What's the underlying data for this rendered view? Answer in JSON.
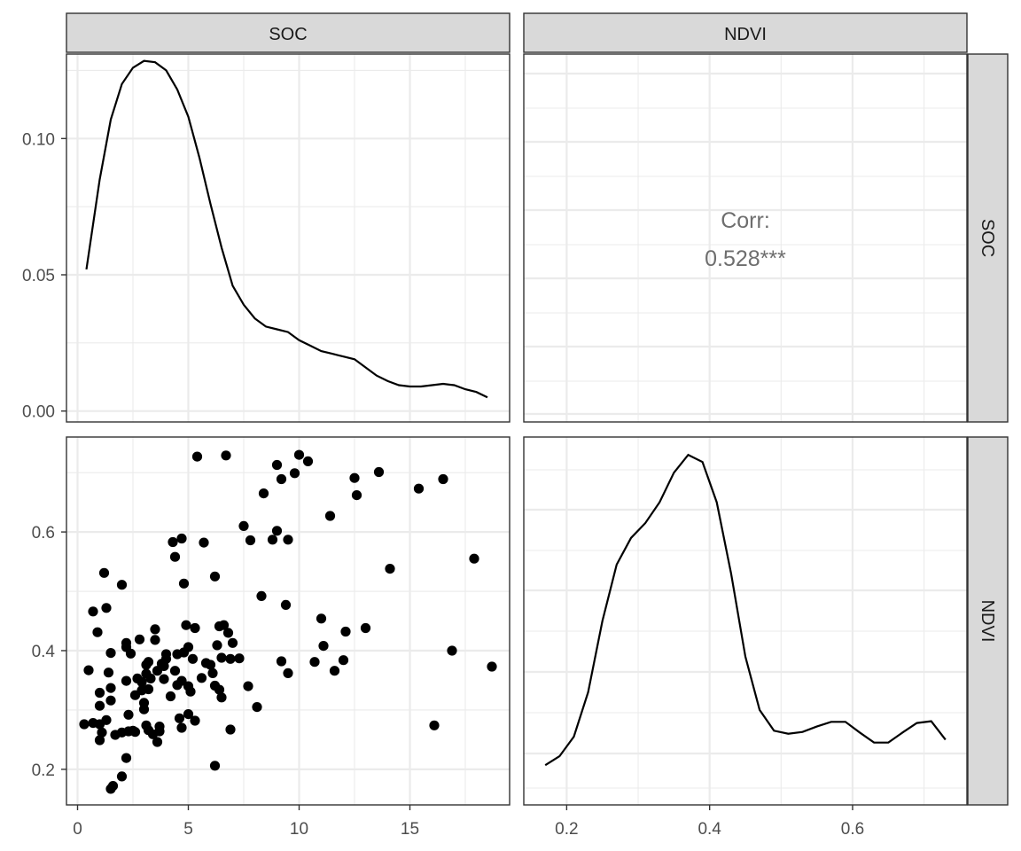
{
  "chart_data": {
    "type": "scatter",
    "kind": "pairs-plot matrix",
    "variables": [
      "SOC",
      "NDVI"
    ],
    "column_strips": [
      "SOC",
      "NDVI"
    ],
    "row_strips": [
      "SOC",
      "NDVI"
    ],
    "grid": true,
    "theme": "black-and-white",
    "axes": {
      "SOC": {
        "range": [
          -0.5,
          19.5
        ],
        "ticks": [
          0,
          5,
          10,
          15
        ],
        "tick_labels": [
          "0",
          "5",
          "10",
          "15"
        ]
      },
      "NDVI": {
        "range": [
          0.14,
          0.76
        ],
        "ticks": [
          0.2,
          0.4,
          0.6
        ],
        "tick_labels": [
          "0.2",
          "0.4",
          "0.6"
        ]
      },
      "SOC_density": {
        "range": [
          -0.004,
          0.131
        ],
        "ticks": [
          0,
          0.05,
          0.1
        ],
        "tick_labels": [
          "0.00",
          "0.05",
          "0.10"
        ]
      }
    },
    "panels": [
      {
        "id": "soc-density",
        "type": "line",
        "x_var": "SOC",
        "points": [
          [
            0.4,
            0.052
          ],
          [
            1.0,
            0.085
          ],
          [
            1.5,
            0.107
          ],
          [
            2.0,
            0.12
          ],
          [
            2.5,
            0.126
          ],
          [
            3.0,
            0.1285
          ],
          [
            3.5,
            0.128
          ],
          [
            4.0,
            0.125
          ],
          [
            4.5,
            0.118
          ],
          [
            5.0,
            0.108
          ],
          [
            5.5,
            0.093
          ],
          [
            6.0,
            0.076
          ],
          [
            6.5,
            0.06
          ],
          [
            7.0,
            0.046
          ],
          [
            7.5,
            0.039
          ],
          [
            8.0,
            0.034
          ],
          [
            8.5,
            0.031
          ],
          [
            9.0,
            0.03
          ],
          [
            9.5,
            0.029
          ],
          [
            10.0,
            0.026
          ],
          [
            10.5,
            0.024
          ],
          [
            11.0,
            0.022
          ],
          [
            11.5,
            0.021
          ],
          [
            12.0,
            0.02
          ],
          [
            12.5,
            0.019
          ],
          [
            13.0,
            0.016
          ],
          [
            13.5,
            0.013
          ],
          [
            14.0,
            0.011
          ],
          [
            14.5,
            0.0095
          ],
          [
            15.0,
            0.009
          ],
          [
            15.5,
            0.009
          ],
          [
            16.0,
            0.0095
          ],
          [
            16.5,
            0.01
          ],
          [
            17.0,
            0.0095
          ],
          [
            17.5,
            0.008
          ],
          [
            18.0,
            0.007
          ],
          [
            18.5,
            0.005
          ]
        ]
      },
      {
        "id": "correlation",
        "type": "text",
        "corr_label": "Corr:",
        "corr_value": "0.528***"
      },
      {
        "id": "scatter",
        "type": "scatter",
        "x_var": "SOC",
        "y_var": "NDVI",
        "points": [
          [
            0.3,
            0.276
          ],
          [
            0.5,
            0.367
          ],
          [
            0.7,
            0.278
          ],
          [
            0.7,
            0.466
          ],
          [
            0.9,
            0.431
          ],
          [
            1.0,
            0.307
          ],
          [
            1.0,
            0.329
          ],
          [
            1.0,
            0.276
          ],
          [
            1.0,
            0.249
          ],
          [
            1.1,
            0.262
          ],
          [
            1.2,
            0.531
          ],
          [
            1.3,
            0.472
          ],
          [
            1.3,
            0.283
          ],
          [
            1.4,
            0.363
          ],
          [
            1.5,
            0.316
          ],
          [
            1.5,
            0.337
          ],
          [
            1.5,
            0.396
          ],
          [
            1.5,
            0.167
          ],
          [
            1.6,
            0.172
          ],
          [
            1.7,
            0.258
          ],
          [
            2.0,
            0.511
          ],
          [
            2.0,
            0.262
          ],
          [
            2.0,
            0.188
          ],
          [
            2.2,
            0.219
          ],
          [
            2.2,
            0.349
          ],
          [
            2.2,
            0.406
          ],
          [
            2.2,
            0.413
          ],
          [
            2.3,
            0.264
          ],
          [
            2.3,
            0.292
          ],
          [
            2.4,
            0.395
          ],
          [
            2.5,
            0.265
          ],
          [
            2.6,
            0.325
          ],
          [
            2.6,
            0.263
          ],
          [
            2.7,
            0.353
          ],
          [
            2.8,
            0.419
          ],
          [
            2.9,
            0.347
          ],
          [
            2.9,
            0.333
          ],
          [
            3.0,
            0.301
          ],
          [
            3.0,
            0.312
          ],
          [
            3.1,
            0.361
          ],
          [
            3.1,
            0.274
          ],
          [
            3.1,
            0.376
          ],
          [
            3.2,
            0.381
          ],
          [
            3.2,
            0.266
          ],
          [
            3.2,
            0.335
          ],
          [
            3.3,
            0.353
          ],
          [
            3.4,
            0.259
          ],
          [
            3.5,
            0.436
          ],
          [
            3.5,
            0.418
          ],
          [
            3.6,
            0.366
          ],
          [
            3.6,
            0.246
          ],
          [
            3.7,
            0.264
          ],
          [
            3.7,
            0.272
          ],
          [
            3.8,
            0.378
          ],
          [
            3.9,
            0.374
          ],
          [
            3.9,
            0.352
          ],
          [
            4.0,
            0.386
          ],
          [
            4.0,
            0.394
          ],
          [
            4.2,
            0.323
          ],
          [
            4.3,
            0.583
          ],
          [
            4.4,
            0.558
          ],
          [
            4.4,
            0.366
          ],
          [
            4.5,
            0.394
          ],
          [
            4.5,
            0.342
          ],
          [
            4.6,
            0.286
          ],
          [
            4.7,
            0.589
          ],
          [
            4.7,
            0.27
          ],
          [
            4.7,
            0.349
          ],
          [
            4.8,
            0.513
          ],
          [
            4.8,
            0.397
          ],
          [
            4.9,
            0.443
          ],
          [
            5.0,
            0.406
          ],
          [
            5.0,
            0.34
          ],
          [
            5.0,
            0.293
          ],
          [
            5.1,
            0.331
          ],
          [
            5.2,
            0.386
          ],
          [
            5.3,
            0.282
          ],
          [
            5.3,
            0.438
          ],
          [
            5.4,
            0.727
          ],
          [
            5.6,
            0.354
          ],
          [
            5.7,
            0.582
          ],
          [
            5.8,
            0.379
          ],
          [
            6.0,
            0.376
          ],
          [
            6.1,
            0.362
          ],
          [
            6.2,
            0.206
          ],
          [
            6.2,
            0.525
          ],
          [
            6.2,
            0.341
          ],
          [
            6.3,
            0.409
          ],
          [
            6.4,
            0.334
          ],
          [
            6.4,
            0.441
          ],
          [
            6.5,
            0.388
          ],
          [
            6.5,
            0.321
          ],
          [
            6.6,
            0.443
          ],
          [
            6.7,
            0.729
          ],
          [
            6.8,
            0.43
          ],
          [
            6.9,
            0.267
          ],
          [
            6.9,
            0.386
          ],
          [
            7.0,
            0.413
          ],
          [
            7.3,
            0.387
          ],
          [
            7.5,
            0.61
          ],
          [
            7.7,
            0.34
          ],
          [
            7.8,
            0.586
          ],
          [
            8.1,
            0.305
          ],
          [
            8.3,
            0.492
          ],
          [
            8.4,
            0.665
          ],
          [
            8.8,
            0.587
          ],
          [
            9.0,
            0.713
          ],
          [
            9.0,
            0.602
          ],
          [
            9.2,
            0.382
          ],
          [
            9.2,
            0.689
          ],
          [
            9.4,
            0.477
          ],
          [
            9.5,
            0.587
          ],
          [
            9.5,
            0.362
          ],
          [
            9.8,
            0.699
          ],
          [
            10.0,
            0.73
          ],
          [
            10.4,
            0.719
          ],
          [
            10.7,
            0.381
          ],
          [
            11.0,
            0.454
          ],
          [
            11.1,
            0.408
          ],
          [
            11.4,
            0.627
          ],
          [
            11.6,
            0.366
          ],
          [
            12.0,
            0.384
          ],
          [
            12.1,
            0.432
          ],
          [
            12.5,
            0.691
          ],
          [
            12.6,
            0.662
          ],
          [
            13.0,
            0.438
          ],
          [
            13.6,
            0.701
          ],
          [
            14.1,
            0.538
          ],
          [
            15.4,
            0.673
          ],
          [
            16.1,
            0.274
          ],
          [
            16.5,
            0.689
          ],
          [
            16.9,
            0.4
          ],
          [
            17.9,
            0.555
          ],
          [
            18.7,
            0.373
          ]
        ]
      },
      {
        "id": "ndvi-density",
        "type": "line",
        "x_var": "NDVI",
        "density_range": [
          0.14,
          0.76
        ],
        "points": [
          [
            0.17,
            0.207
          ],
          [
            0.19,
            0.222
          ],
          [
            0.21,
            0.255
          ],
          [
            0.23,
            0.33
          ],
          [
            0.25,
            0.45
          ],
          [
            0.27,
            0.545
          ],
          [
            0.29,
            0.59
          ],
          [
            0.31,
            0.615
          ],
          [
            0.33,
            0.65
          ],
          [
            0.35,
            0.7
          ],
          [
            0.37,
            0.73
          ],
          [
            0.39,
            0.718
          ],
          [
            0.41,
            0.65
          ],
          [
            0.43,
            0.53
          ],
          [
            0.45,
            0.39
          ],
          [
            0.47,
            0.3
          ],
          [
            0.49,
            0.265
          ],
          [
            0.51,
            0.26
          ],
          [
            0.53,
            0.263
          ],
          [
            0.55,
            0.272
          ],
          [
            0.57,
            0.28
          ],
          [
            0.59,
            0.28
          ],
          [
            0.61,
            0.262
          ],
          [
            0.63,
            0.245
          ],
          [
            0.65,
            0.245
          ],
          [
            0.67,
            0.262
          ],
          [
            0.69,
            0.278
          ],
          [
            0.71,
            0.281
          ],
          [
            0.73,
            0.25
          ]
        ]
      }
    ]
  }
}
